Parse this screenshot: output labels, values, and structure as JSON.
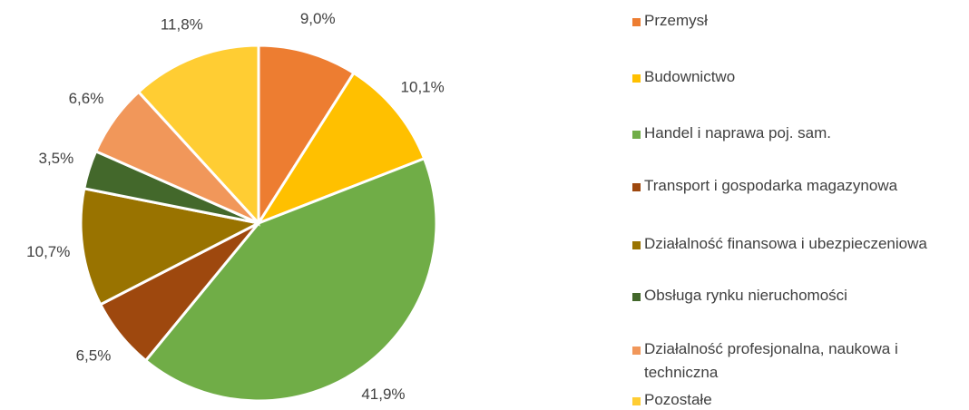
{
  "chart_data": {
    "type": "pie",
    "categories": [
      "Przemysł",
      "Budownictwo",
      "Handel i naprawa poj. sam.",
      "Transport i gospodarka magazynowa",
      "Działalność finansowa i ubezpieczeniowa",
      "Obsługa rynku nieruchomości",
      "Działalność profesjonalna, naukowa i techniczna",
      "Pozostałe"
    ],
    "values": [
      9.0,
      10.1,
      41.9,
      6.5,
      10.7,
      3.5,
      6.6,
      11.8
    ],
    "value_labels": [
      "9,0%",
      "10,1%",
      "41,9%",
      "6,5%",
      "10,7%",
      "3,5%",
      "6,6%",
      "11,8%"
    ],
    "colors": [
      "#ED7D31",
      "#FFC000",
      "#70AD47",
      "#9E480E",
      "#997300",
      "#43682B",
      "#F1975A",
      "#FFCD33"
    ],
    "legend": "right"
  }
}
